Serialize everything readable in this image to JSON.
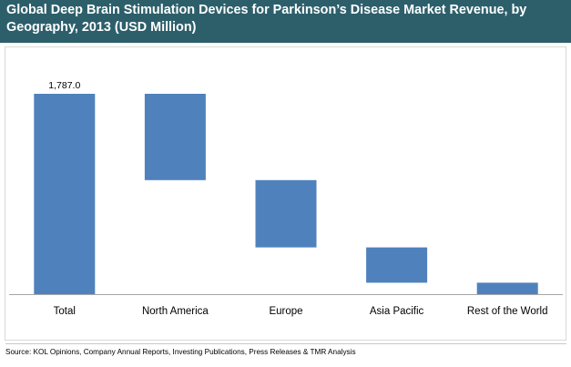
{
  "colors": {
    "header_bg": "#2d5f6b",
    "bar": "#4f81bd",
    "axis": "#a6a6a6",
    "frame": "#d9d9d9"
  },
  "header": {
    "title": "Global Deep Brain Stimulation Devices for Parkinson’s Disease Market Revenue, by Geography, 2013 (USD Million)"
  },
  "chart_data": {
    "type": "bar",
    "subtype": "waterfall",
    "title": "Global Deep Brain Stimulation Devices for Parkinson’s Disease Market Revenue, by Geography, 2013 (USD Million)",
    "categories": [
      "Total",
      "North America",
      "Europe",
      "Asia Pacific",
      "Rest of the World"
    ],
    "values": [
      1787.0,
      770.0,
      600.0,
      315.0,
      102.0
    ],
    "data_labels": [
      "1,787.0",
      "",
      "",
      "",
      ""
    ],
    "ylim": [
      0,
      1787.0
    ],
    "xlabel": "",
    "ylabel": "",
    "grid": false,
    "legend": "none"
  },
  "source": {
    "text": "Source: KOL Opinions, Company Annual Reports, Investing Publications, Press Releases & TMR Analysis"
  }
}
